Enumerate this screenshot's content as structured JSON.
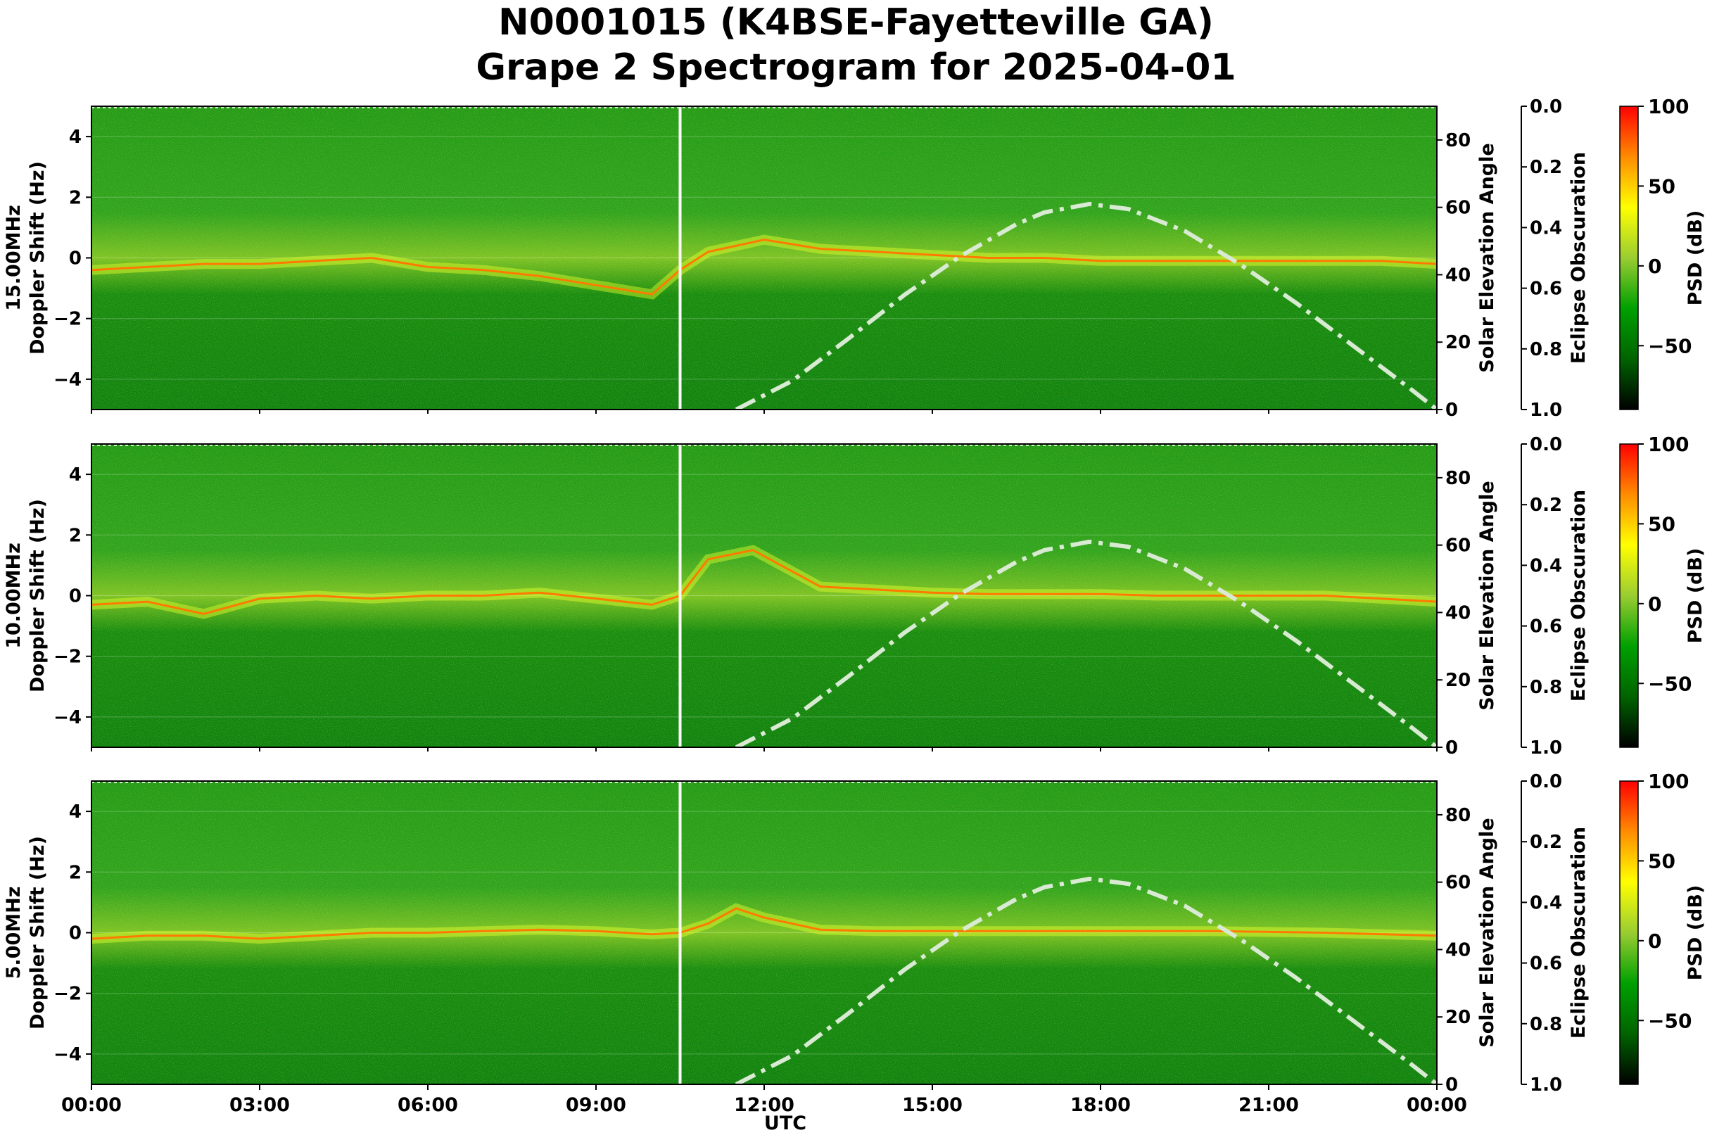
{
  "title_line1": "N0001015 (K4BSE-Fayetteville GA)",
  "title_line2": "Grape 2 Spectrogram for 2025-04-01",
  "chart_data": {
    "type": "heatmap",
    "x_label": "UTC",
    "x_ticks": [
      "00:00",
      "03:00",
      "06:00",
      "09:00",
      "12:00",
      "15:00",
      "18:00",
      "21:00",
      "00:00"
    ],
    "x_range_hours": [
      0,
      24
    ],
    "vertical_marker_hour": 10.5,
    "doppler_axis": {
      "label": "Doppler Shift (Hz)",
      "range": [
        -5,
        5
      ],
      "ticks": [
        -4,
        -2,
        0,
        2,
        4
      ]
    },
    "solar_axis": {
      "label": "Solar Elevation Angle",
      "range": [
        0,
        90
      ],
      "ticks": [
        0,
        20,
        40,
        60,
        80
      ]
    },
    "eclipse_axis": {
      "label": "Eclipse Obscuration",
      "range": [
        0.0,
        1.0
      ],
      "ticks": [
        "0.0",
        "0.2",
        "0.4",
        "0.6",
        "0.8",
        "1.0"
      ]
    },
    "colorbar": {
      "label": "PSD (dB)",
      "range": [
        -90,
        100
      ],
      "ticks": [
        100,
        50,
        0,
        -50
      ],
      "colors": [
        "#000000",
        "#006400",
        "#00a000",
        "#9acd32",
        "#ffff00",
        "#ff8c00",
        "#ff0000"
      ]
    },
    "solar_elevation_curve": {
      "style": "dash-dot",
      "color": "#d9ead3",
      "hours": [
        11.5,
        12.5,
        13.5,
        14.5,
        15.5,
        16.5,
        17.0,
        17.8,
        18.5,
        19.5,
        20.5,
        21.5,
        22.5,
        23.5,
        24.0
      ],
      "values": [
        0,
        8.5,
        21,
        34,
        45.5,
        55,
        58.5,
        61,
        59.5,
        53,
        43,
        31.5,
        19,
        6.5,
        0
      ]
    },
    "panels": [
      {
        "name": "15.00MHz",
        "trace_hours": [
          0,
          1,
          2,
          3,
          4,
          5,
          6,
          7,
          8,
          9,
          10,
          10.5,
          11,
          12,
          13,
          14,
          15,
          16,
          17,
          18,
          19,
          20,
          21,
          22,
          23,
          24
        ],
        "trace_doppler": [
          -0.4,
          -0.3,
          -0.2,
          -0.2,
          -0.1,
          0,
          -0.3,
          -0.4,
          -0.6,
          -0.9,
          -1.2,
          -0.4,
          0.2,
          0.6,
          0.3,
          0.2,
          0.1,
          0,
          0,
          -0.1,
          -0.1,
          -0.1,
          -0.1,
          -0.1,
          -0.1,
          -0.2
        ]
      },
      {
        "name": "10.00MHz",
        "trace_hours": [
          0,
          1,
          2,
          3,
          4,
          5,
          6,
          7,
          8,
          9,
          10,
          10.5,
          11,
          11.8,
          12.5,
          13,
          14,
          15,
          16,
          17,
          18,
          19,
          20,
          21,
          22,
          23,
          24
        ],
        "trace_doppler": [
          -0.3,
          -0.2,
          -0.6,
          -0.1,
          0,
          -0.1,
          0,
          0,
          0.1,
          -0.1,
          -0.3,
          0,
          1.2,
          1.5,
          0.8,
          0.3,
          0.2,
          0.1,
          0.05,
          0.05,
          0.05,
          0,
          0,
          0,
          0,
          -0.1,
          -0.2
        ]
      },
      {
        "name": "5.00MHz",
        "trace_hours": [
          0,
          1,
          2,
          3,
          4,
          5,
          6,
          7,
          8,
          9,
          10,
          10.5,
          11,
          11.5,
          12,
          13,
          14,
          16,
          18,
          20,
          22,
          24
        ],
        "trace_doppler": [
          -0.2,
          -0.1,
          -0.1,
          -0.2,
          -0.1,
          0,
          0,
          0.05,
          0.1,
          0.05,
          -0.05,
          0,
          0.3,
          0.8,
          0.5,
          0.1,
          0.05,
          0.05,
          0.05,
          0.05,
          0,
          -0.1
        ]
      }
    ]
  }
}
